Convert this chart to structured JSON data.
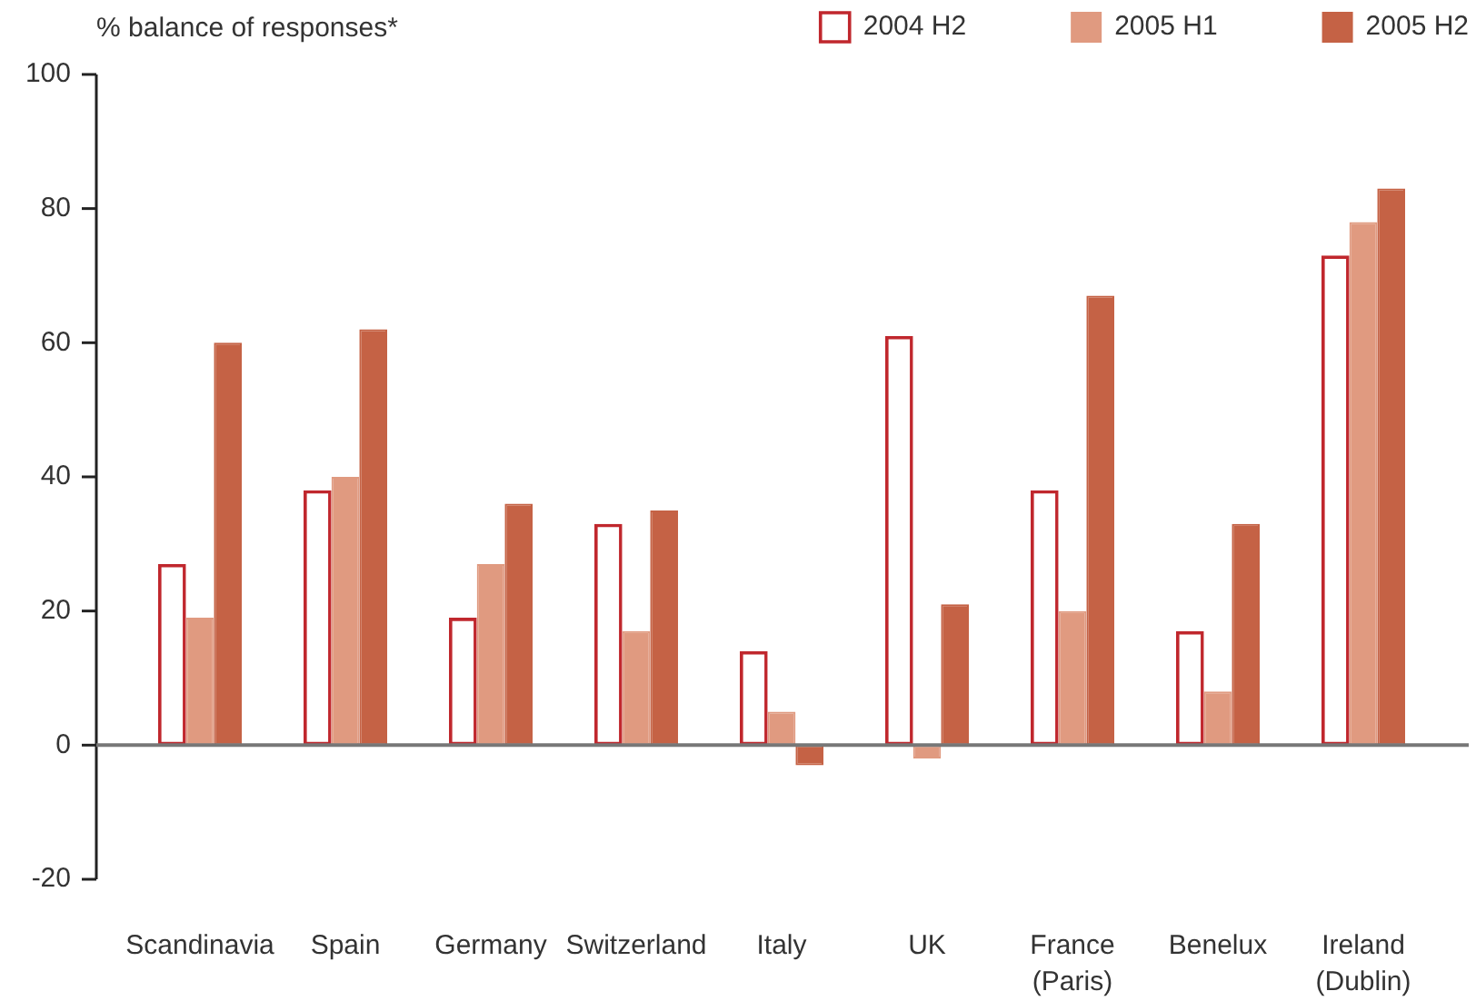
{
  "chart_data": {
    "type": "bar",
    "ylabel": "% balance of responses*",
    "categories": [
      "Scandinavia",
      "Spain",
      "Germany",
      "Switzerland",
      "Italy",
      "UK",
      "France\n(Paris)",
      "Benelux",
      "Ireland\n(Dublin)"
    ],
    "series": [
      {
        "name": "2004 H2",
        "color": "#c0272d",
        "values": [
          27,
          38,
          19,
          33,
          14,
          61,
          38,
          17,
          73
        ]
      },
      {
        "name": "2005 H1",
        "color": "#e09a80",
        "values": [
          19,
          40,
          27,
          17,
          5,
          -2,
          20,
          8,
          78
        ]
      },
      {
        "name": "2005 H2",
        "color": "#c56245",
        "values": [
          60,
          62,
          36,
          35,
          -3,
          21,
          67,
          33,
          83
        ]
      }
    ],
    "ylim": [
      -20,
      100
    ],
    "yticks": [
      -20,
      0,
      20,
      40,
      60,
      80,
      100
    ],
    "legend": "top right"
  }
}
